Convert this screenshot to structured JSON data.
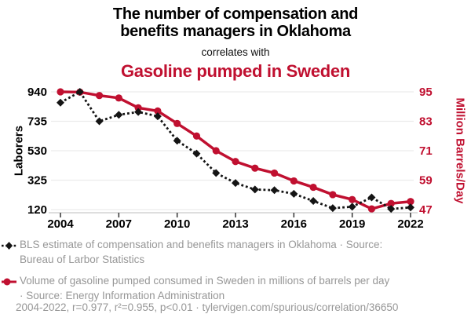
{
  "header": {
    "title": "The number of compensation and benefits managers in Oklahoma",
    "connector": "correlates with",
    "subtitle": "Gasoline pumped in Sweden"
  },
  "colors": {
    "red": "#c01030",
    "black": "#141414",
    "gray_text": "#979797",
    "grid": "#ececec",
    "axis_line": "#c9c9c9",
    "tick": "#333333"
  },
  "chart_data": {
    "type": "line",
    "x": [
      2004,
      2005,
      2006,
      2007,
      2008,
      2009,
      2010,
      2011,
      2012,
      2013,
      2014,
      2015,
      2016,
      2017,
      2018,
      2019,
      2020,
      2021,
      2022
    ],
    "x_ticks": [
      2004,
      2007,
      2010,
      2013,
      2016,
      2019,
      2022
    ],
    "grid": true,
    "legend_position": "bottom",
    "left_axis": {
      "label": "Laborers",
      "ticks": [
        940,
        735,
        530,
        325,
        120
      ],
      "range": [
        120,
        940
      ]
    },
    "right_axis": {
      "label": "Million Barrels/Day",
      "ticks": [
        95,
        83,
        71,
        59,
        47
      ],
      "range": [
        47,
        95
      ]
    },
    "series": [
      {
        "name": "BLS estimate of compensation and benefits managers in Oklahoma",
        "axis": "left",
        "marker": "diamond",
        "line": "dotted",
        "color_key": "black",
        "values": [
          865,
          940,
          735,
          780,
          800,
          770,
          600,
          510,
          375,
          305,
          260,
          255,
          230,
          180,
          130,
          140,
          205,
          125,
          135
        ]
      },
      {
        "name": "Volume of gasoline pumped consumed in Sweden",
        "axis": "right",
        "marker": "circle",
        "line": "solid",
        "color_key": "red",
        "values": [
          95.0,
          94.9,
          93.5,
          92.5,
          88.5,
          87.2,
          82.1,
          77.0,
          71.0,
          66.6,
          63.9,
          61.9,
          58.7,
          56.1,
          53.1,
          51.1,
          47.3,
          49.5,
          50.3
        ]
      }
    ]
  },
  "legend": {
    "items": [
      {
        "label": "BLS estimate of compensation and benefits managers in Oklahoma · Source: Bureau of Larbor Statistics",
        "marker": "black-diamond-dotted"
      },
      {
        "label": "Volume of gasoline pumped consumed in Sweden in millions of barrels per day · Source: Energy Information Administration",
        "marker": "red-circle-solid"
      }
    ]
  },
  "footer": {
    "text": "2004-2022, r=0.977, r²=0.955, p<0.01 · tylervigen.com/spurious/correlation/36650"
  }
}
